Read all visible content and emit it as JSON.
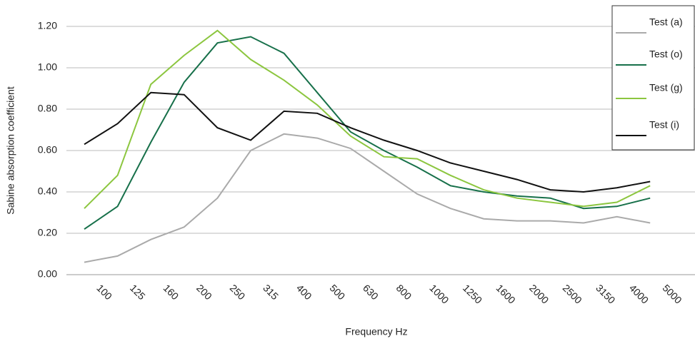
{
  "chart_data": {
    "type": "line",
    "x_label": "Frequency Hz",
    "y_label": "Sabine absorption coefficient",
    "categories": [
      "100",
      "125",
      "160",
      "200",
      "250",
      "315",
      "400",
      "500",
      "630",
      "800",
      "1000",
      "1250",
      "1600",
      "2000",
      "2500",
      "3150",
      "4000",
      "5000"
    ],
    "series": [
      {
        "name": "Test (a)",
        "color": "#aaaaaa",
        "values": [
          0.06,
          0.09,
          0.17,
          0.23,
          0.37,
          0.6,
          0.68,
          0.66,
          0.61,
          0.5,
          0.39,
          0.32,
          0.27,
          0.26,
          0.26,
          0.25,
          0.28,
          0.25
        ]
      },
      {
        "name": "Test (o)",
        "color": "#17704a",
        "values": [
          0.22,
          0.33,
          0.64,
          0.93,
          1.12,
          1.15,
          1.07,
          0.88,
          0.69,
          0.6,
          0.52,
          0.43,
          0.4,
          0.38,
          0.37,
          0.32,
          0.33,
          0.37
        ]
      },
      {
        "name": "Test (g)",
        "color": "#8cc63f",
        "values": [
          0.32,
          0.48,
          0.92,
          1.06,
          1.18,
          1.04,
          0.94,
          0.82,
          0.67,
          0.57,
          0.56,
          0.48,
          0.41,
          0.37,
          0.35,
          0.33,
          0.35,
          0.43
        ]
      },
      {
        "name": "Test (i)",
        "color": "#111111",
        "values": [
          0.63,
          0.73,
          0.88,
          0.87,
          0.71,
          0.65,
          0.79,
          0.78,
          0.71,
          0.65,
          0.6,
          0.54,
          0.5,
          0.46,
          0.41,
          0.4,
          0.42,
          0.45
        ]
      }
    ],
    "ylim": [
      0,
      1.2
    ],
    "yticks": [
      {
        "value": 0,
        "label": "0.00"
      },
      {
        "value": 0.2,
        "label": "0.20"
      },
      {
        "value": 0.4,
        "label": "0.40"
      },
      {
        "value": 0.6,
        "label": "0.60"
      },
      {
        "value": 0.8,
        "label": "0.80"
      },
      {
        "value": 1.0,
        "label": "1.00"
      },
      {
        "value": 1.2,
        "label": "1.20"
      }
    ],
    "grid": true,
    "legend": "top-right"
  }
}
